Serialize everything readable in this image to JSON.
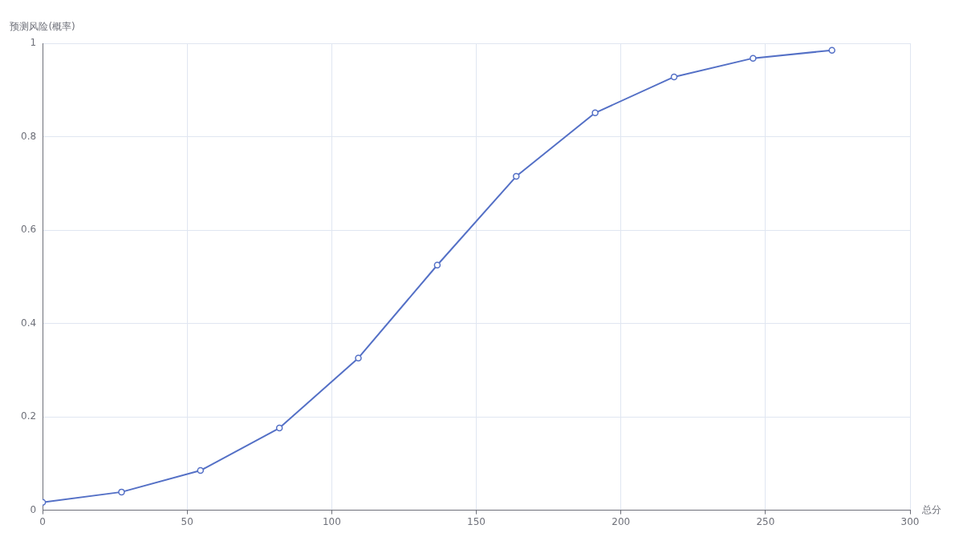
{
  "chart_data": {
    "type": "line",
    "xlabel": "总分",
    "ylabel": "预测风险(概率)",
    "x": [
      0,
      27.3,
      54.6,
      81.9,
      109.2,
      136.5,
      163.8,
      191.1,
      218.4,
      245.7,
      273
    ],
    "series": [
      {
        "color": "#5470c6",
        "values": [
          0.017,
          0.039,
          0.085,
          0.176,
          0.326,
          0.525,
          0.715,
          0.851,
          0.928,
          0.968,
          0.985
        ]
      }
    ],
    "xlim": [
      0,
      300
    ],
    "xticks": [
      0,
      50,
      100,
      150,
      200,
      250,
      300
    ],
    "ylim": [
      0,
      1
    ],
    "yticks": [
      0,
      0.2,
      0.4,
      0.6,
      0.8,
      1
    ],
    "grid": true,
    "marker": "circle",
    "line_style": "solid"
  }
}
